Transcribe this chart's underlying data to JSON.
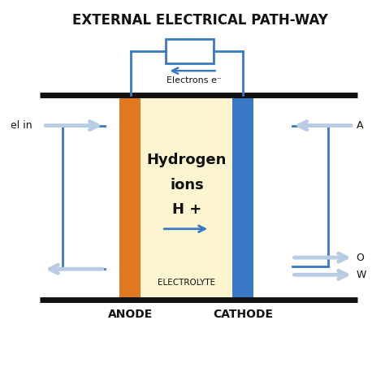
{
  "title": "EXTERNAL ELECTRICAL PATH-WAY",
  "title_fontsize": 12,
  "anode_label": "ANODE",
  "cathode_label": "CATHODE",
  "electrolyte_label": "ELECTROLYTE",
  "center_text_line1": "Hydrogen",
  "center_text_line2": "ions",
  "center_text_line3": "H +",
  "electrons_label": "Electrons e⁻",
  "fuel_in_label": "el in",
  "blue_color": "#3878c5",
  "orange_color": "#e07820",
  "electrolyte_fill": "#fdf5d0",
  "black_color": "#111111",
  "light_gray_arrow": "#b8cce4",
  "background": "#ffffff"
}
